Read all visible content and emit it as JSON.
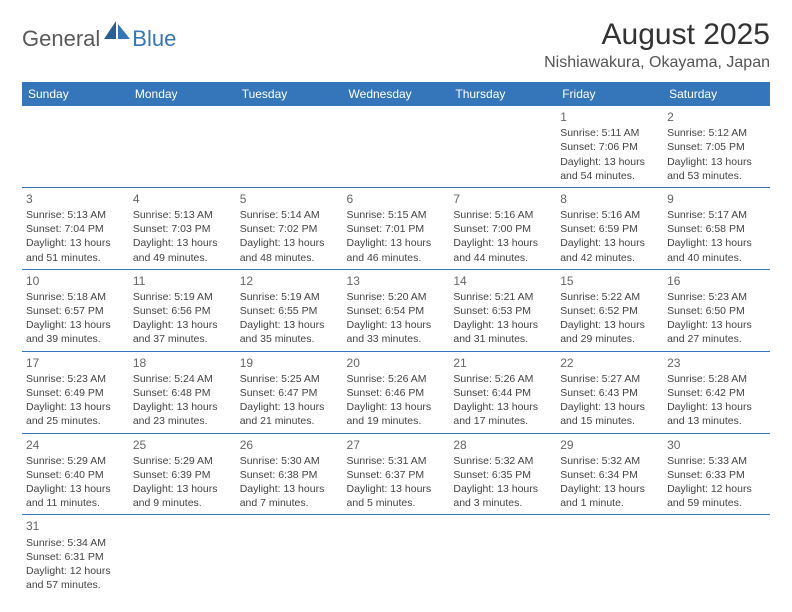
{
  "logo": {
    "text1": "General",
    "text2": "Blue"
  },
  "title": "August 2025",
  "location": "Nishiawakura, Okayama, Japan",
  "colors": {
    "header_bg": "#3576ba",
    "header_text": "#ffffff",
    "border": "#3576ba",
    "logo_gray": "#5a5a5a",
    "logo_blue": "#3576ba"
  },
  "day_headers": [
    "Sunday",
    "Monday",
    "Tuesday",
    "Wednesday",
    "Thursday",
    "Friday",
    "Saturday"
  ],
  "weeks": [
    [
      null,
      null,
      null,
      null,
      null,
      {
        "n": "1",
        "rise": "5:11 AM",
        "set": "7:06 PM",
        "day": "13 hours and 54 minutes."
      },
      {
        "n": "2",
        "rise": "5:12 AM",
        "set": "7:05 PM",
        "day": "13 hours and 53 minutes."
      }
    ],
    [
      {
        "n": "3",
        "rise": "5:13 AM",
        "set": "7:04 PM",
        "day": "13 hours and 51 minutes."
      },
      {
        "n": "4",
        "rise": "5:13 AM",
        "set": "7:03 PM",
        "day": "13 hours and 49 minutes."
      },
      {
        "n": "5",
        "rise": "5:14 AM",
        "set": "7:02 PM",
        "day": "13 hours and 48 minutes."
      },
      {
        "n": "6",
        "rise": "5:15 AM",
        "set": "7:01 PM",
        "day": "13 hours and 46 minutes."
      },
      {
        "n": "7",
        "rise": "5:16 AM",
        "set": "7:00 PM",
        "day": "13 hours and 44 minutes."
      },
      {
        "n": "8",
        "rise": "5:16 AM",
        "set": "6:59 PM",
        "day": "13 hours and 42 minutes."
      },
      {
        "n": "9",
        "rise": "5:17 AM",
        "set": "6:58 PM",
        "day": "13 hours and 40 minutes."
      }
    ],
    [
      {
        "n": "10",
        "rise": "5:18 AM",
        "set": "6:57 PM",
        "day": "13 hours and 39 minutes."
      },
      {
        "n": "11",
        "rise": "5:19 AM",
        "set": "6:56 PM",
        "day": "13 hours and 37 minutes."
      },
      {
        "n": "12",
        "rise": "5:19 AM",
        "set": "6:55 PM",
        "day": "13 hours and 35 minutes."
      },
      {
        "n": "13",
        "rise": "5:20 AM",
        "set": "6:54 PM",
        "day": "13 hours and 33 minutes."
      },
      {
        "n": "14",
        "rise": "5:21 AM",
        "set": "6:53 PM",
        "day": "13 hours and 31 minutes."
      },
      {
        "n": "15",
        "rise": "5:22 AM",
        "set": "6:52 PM",
        "day": "13 hours and 29 minutes."
      },
      {
        "n": "16",
        "rise": "5:23 AM",
        "set": "6:50 PM",
        "day": "13 hours and 27 minutes."
      }
    ],
    [
      {
        "n": "17",
        "rise": "5:23 AM",
        "set": "6:49 PM",
        "day": "13 hours and 25 minutes."
      },
      {
        "n": "18",
        "rise": "5:24 AM",
        "set": "6:48 PM",
        "day": "13 hours and 23 minutes."
      },
      {
        "n": "19",
        "rise": "5:25 AM",
        "set": "6:47 PM",
        "day": "13 hours and 21 minutes."
      },
      {
        "n": "20",
        "rise": "5:26 AM",
        "set": "6:46 PM",
        "day": "13 hours and 19 minutes."
      },
      {
        "n": "21",
        "rise": "5:26 AM",
        "set": "6:44 PM",
        "day": "13 hours and 17 minutes."
      },
      {
        "n": "22",
        "rise": "5:27 AM",
        "set": "6:43 PM",
        "day": "13 hours and 15 minutes."
      },
      {
        "n": "23",
        "rise": "5:28 AM",
        "set": "6:42 PM",
        "day": "13 hours and 13 minutes."
      }
    ],
    [
      {
        "n": "24",
        "rise": "5:29 AM",
        "set": "6:40 PM",
        "day": "13 hours and 11 minutes."
      },
      {
        "n": "25",
        "rise": "5:29 AM",
        "set": "6:39 PM",
        "day": "13 hours and 9 minutes."
      },
      {
        "n": "26",
        "rise": "5:30 AM",
        "set": "6:38 PM",
        "day": "13 hours and 7 minutes."
      },
      {
        "n": "27",
        "rise": "5:31 AM",
        "set": "6:37 PM",
        "day": "13 hours and 5 minutes."
      },
      {
        "n": "28",
        "rise": "5:32 AM",
        "set": "6:35 PM",
        "day": "13 hours and 3 minutes."
      },
      {
        "n": "29",
        "rise": "5:32 AM",
        "set": "6:34 PM",
        "day": "13 hours and 1 minute."
      },
      {
        "n": "30",
        "rise": "5:33 AM",
        "set": "6:33 PM",
        "day": "12 hours and 59 minutes."
      }
    ],
    [
      {
        "n": "31",
        "rise": "5:34 AM",
        "set": "6:31 PM",
        "day": "12 hours and 57 minutes."
      },
      null,
      null,
      null,
      null,
      null,
      null
    ]
  ],
  "labels": {
    "sunrise": "Sunrise: ",
    "sunset": "Sunset: ",
    "daylight": "Daylight: "
  }
}
